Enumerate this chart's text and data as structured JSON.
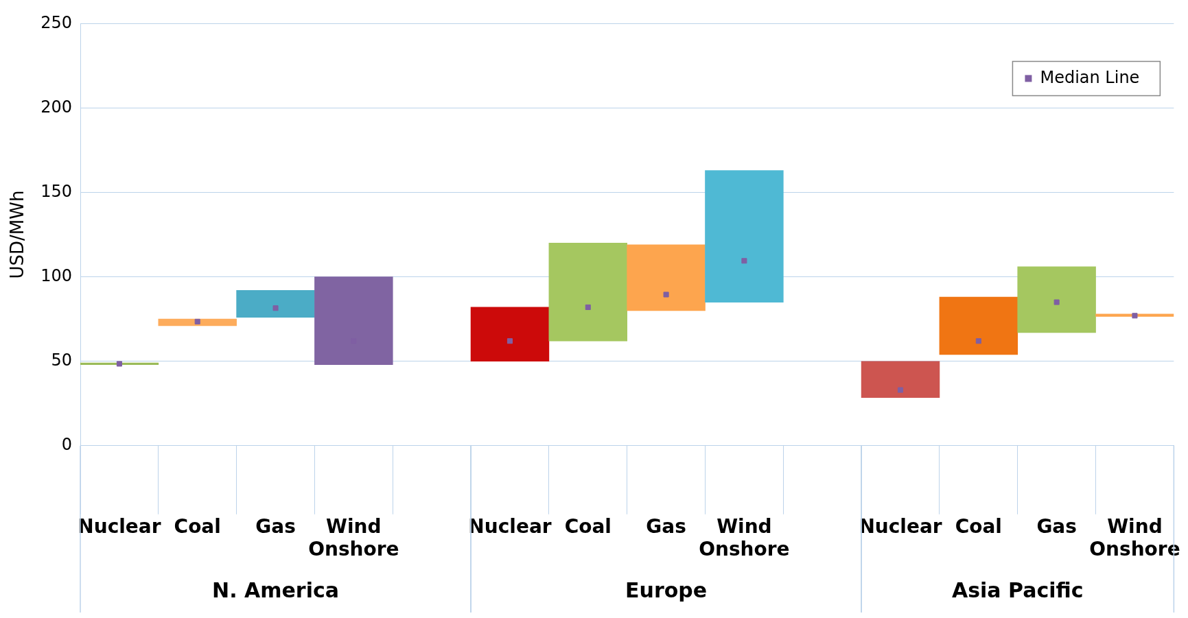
{
  "chart_data": {
    "type": "bar",
    "ylabel": "USD/MWh",
    "categories": [
      "Nuclear",
      "Coal",
      "Gas",
      "Wind Onshore",
      null,
      "Nuclear",
      "Coal",
      "Gas",
      "Wind Onshore",
      null,
      "Nuclear",
      "Coal",
      "Gas",
      "Wind Onshore"
    ],
    "base": [
      48,
      71,
      76,
      48,
      null,
      50,
      62,
      80,
      85,
      null,
      28.5,
      54,
      67,
      76.5
    ],
    "values": [
      1,
      4,
      16,
      52,
      null,
      32,
      58,
      39,
      78,
      null,
      21.5,
      34,
      39,
      1.5
    ],
    "colors": [
      "#9bbb59",
      "#fdac5c",
      "#4bacc6",
      "#8064a2",
      "#ffffff",
      "#cc0a0a",
      "#a5c760",
      "#fda54e",
      "#4fb9d4",
      "#ffffff",
      "#cd5550",
      "#f07513",
      "#a5c760",
      "#fda54e"
    ],
    "series": [
      {
        "type": "scatter",
        "name": "Median Line",
        "color": "#7f5fa3",
        "values": [
          48.5,
          73.5,
          81.5,
          62,
          null,
          62,
          82,
          89.5,
          109.5,
          null,
          33,
          62,
          85,
          77
        ]
      }
    ],
    "annotations": [
      "N. America",
      "Europe",
      "Asia Pacific"
    ],
    "marker": "square",
    "ylim": [
      0,
      250
    ],
    "yticks": [
      0,
      50,
      100,
      150,
      200,
      250
    ],
    "grid": "y",
    "legend": "top right"
  }
}
